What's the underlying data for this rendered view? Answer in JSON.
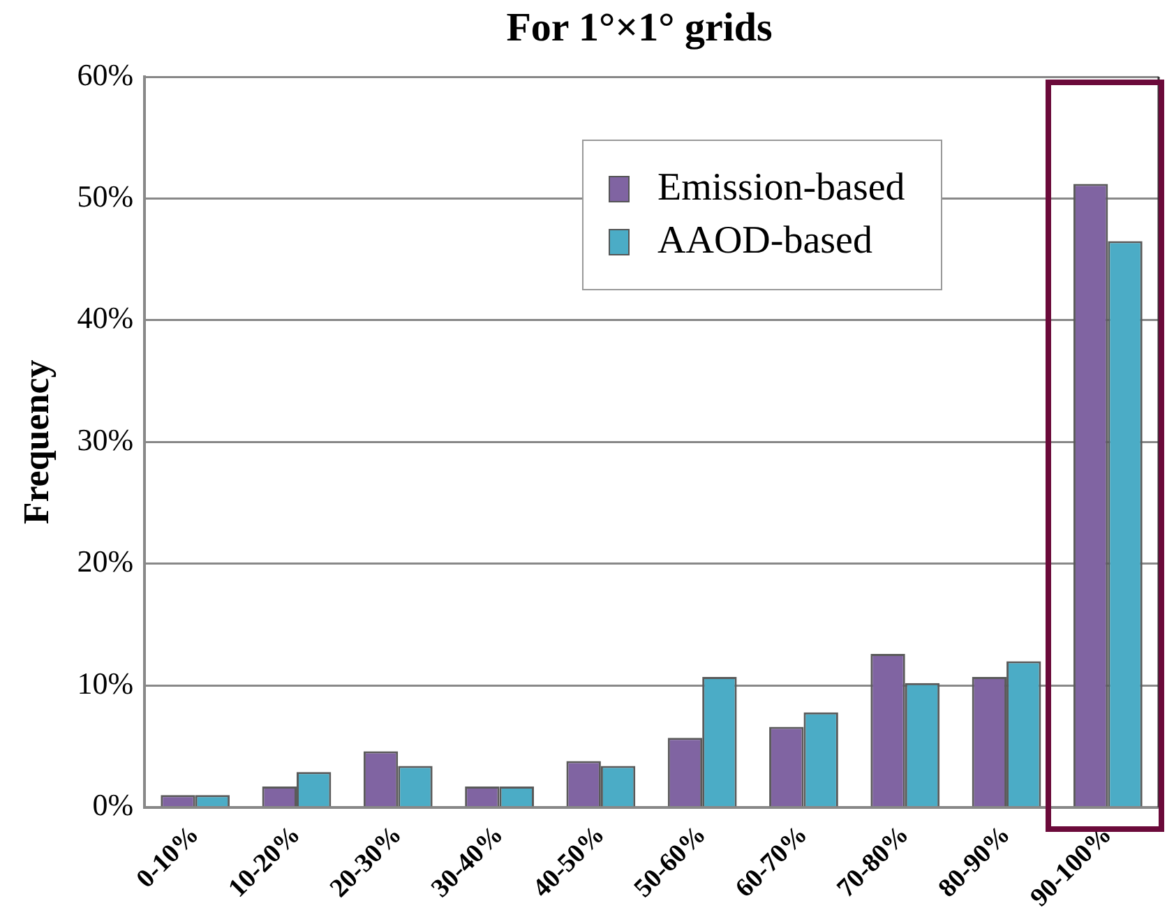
{
  "chart_data": {
    "type": "bar",
    "title": "For 1°×1° grids",
    "ylabel": "Frequency",
    "categories": [
      "0-10%",
      "10-20%",
      "20-30%",
      "30-40%",
      "40-50%",
      "50-60%",
      "60-70%",
      "70-80%",
      "80-90%",
      "90-100%"
    ],
    "series": [
      {
        "name": "Emission-based",
        "color": "#8064a2",
        "values": [
          1.0,
          1.7,
          4.6,
          1.7,
          3.8,
          5.7,
          6.6,
          12.6,
          10.7,
          51.2
        ]
      },
      {
        "name": "AAOD-based",
        "color": "#4bacc6",
        "values": [
          1.0,
          2.9,
          3.4,
          1.7,
          3.4,
          10.7,
          7.8,
          10.2,
          12.0,
          46.5
        ]
      }
    ],
    "ylim": [
      0,
      60
    ],
    "yticks": [
      {
        "value": 0,
        "label": "0%"
      },
      {
        "value": 10,
        "label": "10%"
      },
      {
        "value": 20,
        "label": "20%"
      },
      {
        "value": 30,
        "label": "30%"
      },
      {
        "value": 40,
        "label": "40%"
      },
      {
        "value": 50,
        "label": "50%"
      },
      {
        "value": 60,
        "label": "60%"
      }
    ],
    "grid": "y",
    "legend": "top right"
  }
}
